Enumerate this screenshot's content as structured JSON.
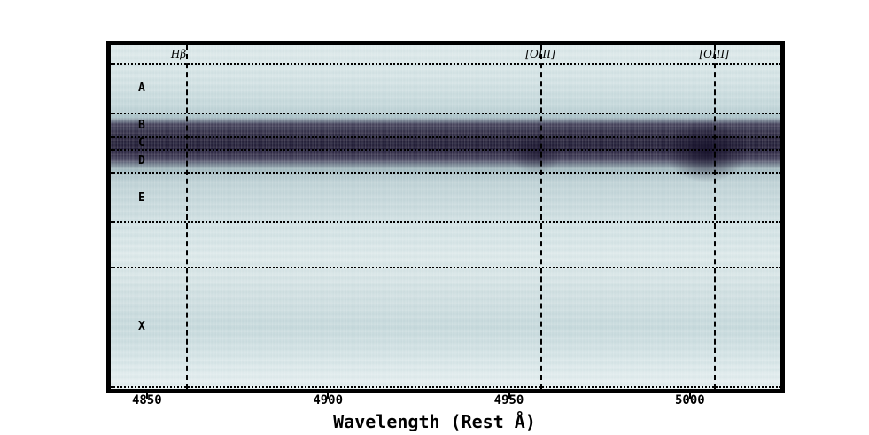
{
  "chart_data": {
    "type": "heatmap",
    "title": "",
    "xlabel": "Wavelength (Rest Å)",
    "ylabel": "",
    "xlim": [
      4840,
      5025
    ],
    "x_ticks": [
      4850,
      4900,
      4950,
      5000
    ],
    "x_tick_labels": [
      "4850",
      "4900",
      "4950",
      "5000"
    ],
    "emission_lines": [
      {
        "label": "Hβ",
        "x": 4861
      },
      {
        "label": "[OIII]",
        "x": 4959
      },
      {
        "label": "[OIII]",
        "x": 5007
      }
    ],
    "regions": [
      "A",
      "B",
      "C",
      "D",
      "E",
      "X"
    ],
    "colormap": [
      "#e6eff0",
      "#b4c9cd",
      "#1a1530"
    ],
    "grid": false
  }
}
